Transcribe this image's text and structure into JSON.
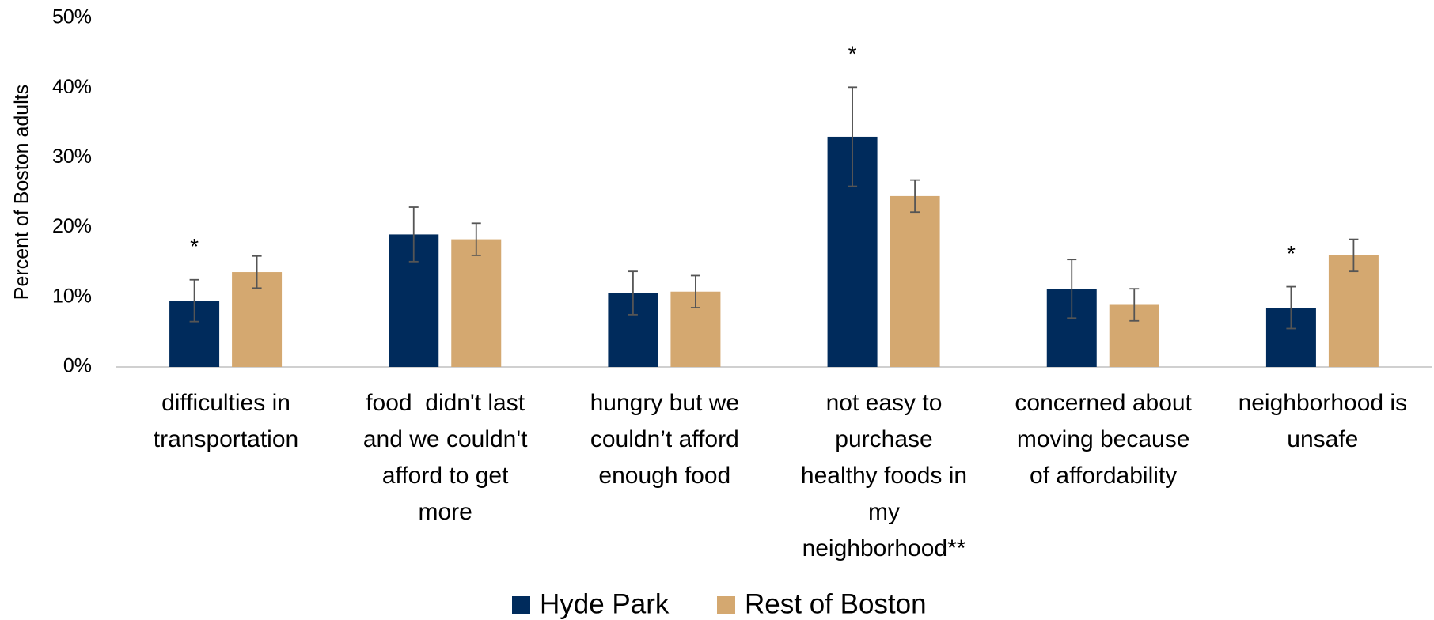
{
  "chart_data": {
    "type": "bar",
    "y_label": "Percent of Boston adults",
    "categories": [
      "difficulties in\ntransportation",
      "food  didn't last\nand we couldn't\nafford to get\nmore",
      "hungry but we\ncouldn’t afford\nenough food",
      "not easy to\npurchase\nhealthy foods in\nmy\nneighborhood**",
      "concerned about\nmoving because\nof affordability",
      "neighborhood is\nunsafe"
    ],
    "series": [
      {
        "name": "Hyde Park",
        "color": "#002b5c",
        "values": [
          9.5,
          19,
          10.6,
          33,
          11.2,
          8.5
        ],
        "errors": [
          3,
          3.9,
          3.1,
          7.1,
          4.2,
          3
        ],
        "annotations": [
          "*",
          null,
          null,
          "*",
          null,
          "*"
        ]
      },
      {
        "name": "Rest of Boston",
        "color": "#d4a870",
        "values": [
          13.6,
          18.3,
          10.8,
          24.5,
          8.9,
          16
        ],
        "errors": [
          2.3,
          2.3,
          2.3,
          2.3,
          2.3,
          2.3
        ]
      }
    ],
    "ylim": [
      0,
      50
    ],
    "yticks": [
      {
        "value": 0,
        "label": "0%"
      },
      {
        "value": 10,
        "label": "10%"
      },
      {
        "value": 20,
        "label": "20%"
      },
      {
        "value": 30,
        "label": "30%"
      },
      {
        "value": 40,
        "label": "40%"
      },
      {
        "value": 50,
        "label": "50%"
      }
    ],
    "grid": false,
    "legend": "bottom"
  }
}
